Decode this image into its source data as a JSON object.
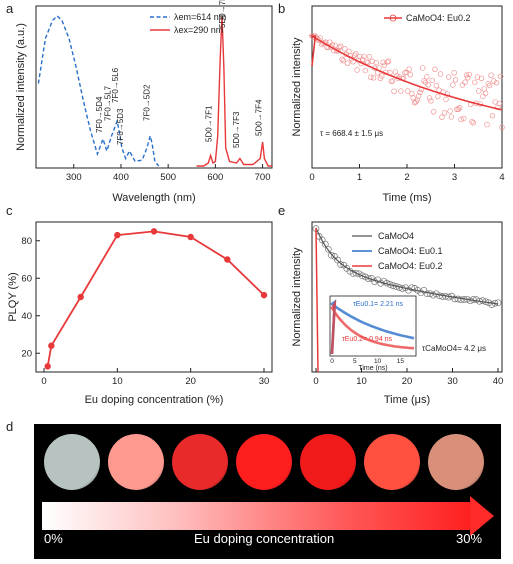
{
  "panels": {
    "a": {
      "letter": "a",
      "xlabel": "Wavelength (nm)",
      "ylabel": "Normalized intensity (a.u.)",
      "legend_em": "λem=614 nm",
      "legend_ex": "λex=290 nm"
    },
    "b": {
      "letter": "b",
      "xlabel": "Time (ms)",
      "ylabel": "Normalized intensity",
      "legend": "CaMoO4: Eu0.2",
      "tau": "τ = 668.4 ± 1.5 μs"
    },
    "c": {
      "letter": "c",
      "xlabel": "Eu doping concentration (%)",
      "ylabel": "PLQY (%)"
    },
    "e": {
      "letter": "e",
      "xlabel": "Time (μs)",
      "ylabel": "Normalized intensity",
      "legend": [
        "CaMoO4",
        "CaMoO4: Eu0.1",
        "CaMoO4: Eu0.2"
      ],
      "tau_main": "τCaMoO4= 4.2 μs",
      "inset": {
        "tau1": "τEu0.1= 2.21 ns",
        "tau2": "τEu0.2= 0.94 ns",
        "xlabel": "Time (ns)",
        "ticks": [
          "0",
          "5",
          "10",
          "15"
        ]
      }
    },
    "d": {
      "letter": "d",
      "start": "0%",
      "label": "Eu doping concentration",
      "end": "30%",
      "circle_colors": [
        "#b6c3c0",
        "#ff9a90",
        "#e82a2a",
        "#ff1e1e",
        "#f01a1a",
        "#ff5040",
        "#d8907a"
      ]
    }
  },
  "colors": {
    "red": "#e8393a",
    "blue": "#2a6fc9",
    "gray": "#555555"
  },
  "chart_data": [
    {
      "id": "a",
      "type": "line",
      "xlim": [
        220,
        720
      ],
      "x_ticks": [
        300,
        400,
        500,
        600,
        700
      ],
      "series": [
        {
          "name": "λem=614 nm",
          "style": "dashed",
          "color": "#2a6fc9",
          "x": [
            225,
            240,
            255,
            265,
            275,
            290,
            305,
            320,
            335,
            350,
            362,
            370,
            380,
            392,
            397,
            402,
            410,
            418,
            430,
            445,
            455,
            462,
            466,
            472,
            480
          ],
          "y": [
            0.55,
            0.85,
            0.97,
            1.0,
            0.97,
            0.85,
            0.66,
            0.44,
            0.24,
            0.08,
            0.18,
            0.1,
            0.2,
            0.3,
            0.22,
            0.12,
            0.05,
            0.1,
            0.03,
            0.04,
            0.12,
            0.2,
            0.15,
            0.03,
            0.0
          ]
        },
        {
          "name": "λex=290 nm",
          "style": "solid",
          "color": "#e8393a",
          "x": [
            560,
            575,
            585,
            590,
            595,
            600,
            605,
            610,
            614,
            618,
            622,
            630,
            645,
            652,
            660,
            680,
            695,
            700,
            704,
            712,
            720
          ],
          "y": [
            0.0,
            0.0,
            0.02,
            0.07,
            0.02,
            0.03,
            0.2,
            0.7,
            1.0,
            0.65,
            0.12,
            0.03,
            0.02,
            0.05,
            0.01,
            0.01,
            0.05,
            0.16,
            0.05,
            0.0,
            0.0
          ]
        }
      ],
      "annotations": [
        "7F0→5D4",
        "7F0→5L7",
        "7F0→5L6",
        "7F0→5D3",
        "7F0→5D2",
        "5D0→7F1",
        "5D0→7F2",
        "5D0→7F3",
        "5D0→7F4"
      ]
    },
    {
      "id": "b",
      "type": "scatter",
      "xlim": [
        0,
        4
      ],
      "x_ticks": [
        0,
        1,
        2,
        3,
        4
      ],
      "yscale": "log",
      "decay_tau_ms": 0.6684,
      "fit_color": "#e8393a"
    },
    {
      "id": "c",
      "type": "line",
      "xlim": [
        0,
        30
      ],
      "ylim": [
        10,
        90
      ],
      "x_ticks": [
        0,
        10,
        20,
        30
      ],
      "y_ticks": [
        20,
        40,
        60,
        80
      ],
      "x": [
        0.5,
        1,
        5,
        10,
        15,
        20,
        25,
        30
      ],
      "y": [
        13,
        24,
        50,
        83,
        85,
        82,
        70,
        51
      ]
    },
    {
      "id": "e",
      "type": "scatter",
      "xlim": [
        0,
        40
      ],
      "x_ticks": [
        0,
        10,
        20,
        30,
        40
      ],
      "yscale": "log",
      "tau_us": 4.2
    }
  ]
}
